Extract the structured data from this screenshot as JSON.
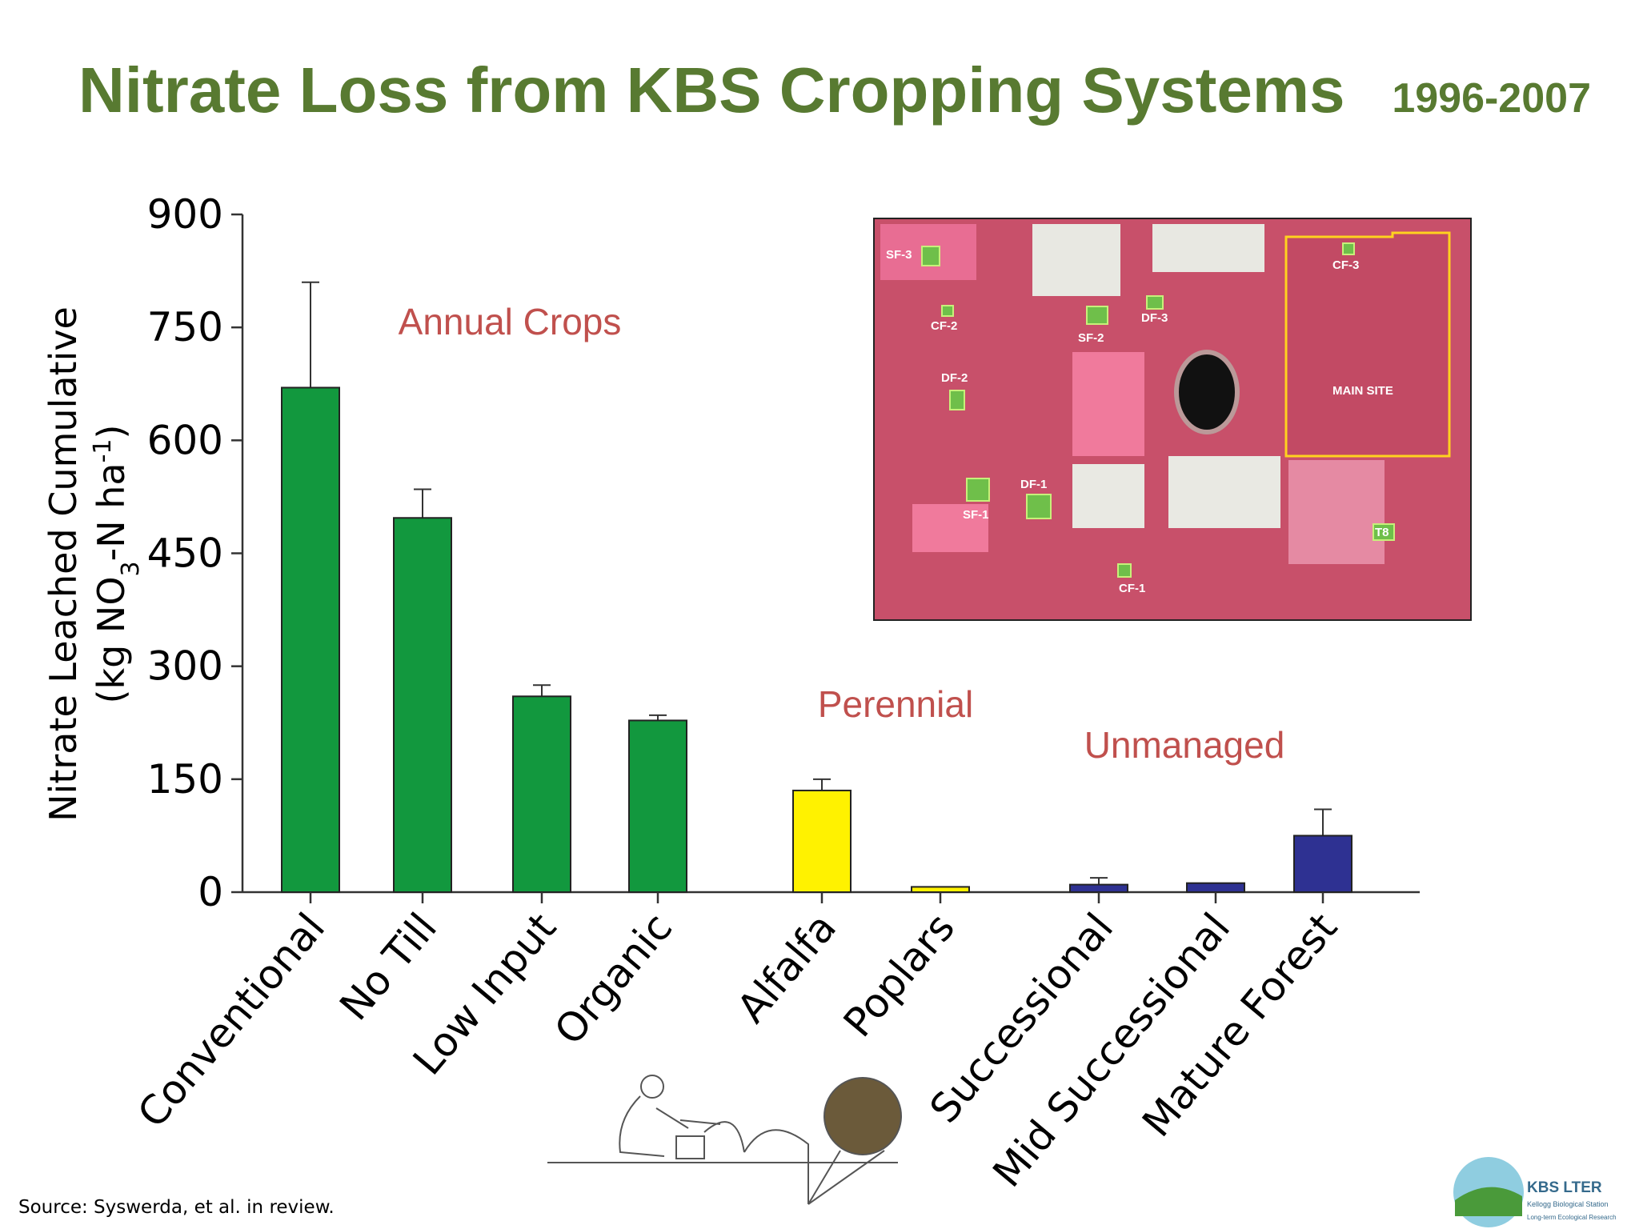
{
  "chart_data": {
    "type": "bar",
    "title": "Nitrate Loss from KBS Cropping Systems",
    "subtitle": "1996-2007",
    "y_label": [
      "Nitrate Leached Cumulative",
      [
        "(kg NO",
        "3",
        "-N ha",
        "-1",
        ")"
      ]
    ],
    "categories": [
      "Conventional",
      "No Till",
      "Low Input",
      "Organic",
      "Alfalfa",
      "Poplars",
      "Successional",
      "Mid Successional",
      "Mature Forest"
    ],
    "values": [
      670,
      497,
      260,
      228,
      135,
      7,
      10,
      12,
      75
    ],
    "errors": [
      140,
      38,
      15,
      7,
      15,
      null,
      9,
      null,
      35
    ],
    "colors": [
      "#12983e",
      "#12983e",
      "#12983e",
      "#12983e",
      "#fff200",
      "#fff200",
      "#2e3192",
      "#2e3192",
      "#2e3192"
    ],
    "annotations": [
      "Annual Crops",
      "Perennial",
      "Unmanaged"
    ],
    "ylim": [
      0,
      900
    ],
    "yticks": [
      0,
      150,
      300,
      450,
      600,
      750,
      900
    ],
    "grid": false
  },
  "map_labels": [
    "SF-3",
    "CF-2",
    "DF-2",
    "SF-2",
    "DF-3",
    "CF-3",
    "MAIN SITE",
    "DF-1",
    "SF-1",
    "T8",
    "CF-1"
  ],
  "source": "Source: Syswerda, et al. in review.",
  "logo": {
    "name": "KBS LTER",
    "line1": "Kellogg Biological Station",
    "line2": "Long-term Ecological Research"
  }
}
